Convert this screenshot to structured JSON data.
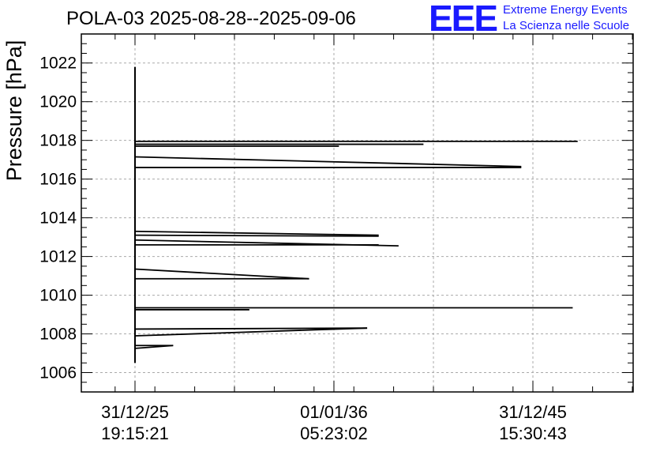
{
  "header": {
    "title": "POLA-03 2025-08-28--2025-09-06",
    "logo_text": "EEE",
    "logo_line1": "Extreme Energy Events",
    "logo_line2": "La Scienza nelle Scuole"
  },
  "colors": {
    "logo": "#1a1aff",
    "data": "#000000",
    "grid": "#aaaaaa"
  },
  "chart_data": {
    "type": "line",
    "title": "POLA-03 2025-08-28--2025-09-06",
    "xlabel": "",
    "ylabel": "Pressure [hPa]",
    "ylim": [
      1005,
      1023.5
    ],
    "y_ticks": [
      1006,
      1008,
      1010,
      1012,
      1014,
      1016,
      1018,
      1020,
      1022
    ],
    "x_ticks": [
      {
        "date": "31/12/25",
        "time": "19:15:21"
      },
      {
        "date": "01/01/36",
        "time": "05:23:02"
      },
      {
        "date": "31/12/45",
        "time": "15:30:43"
      }
    ],
    "grid": true,
    "series": [
      {
        "values_note": "",
        "segments": [
          {
            "from": {
              "x": "2025-12-31",
              "y": 1021.8
            },
            "to": {
              "x": "2025-12-31",
              "y": 1006.5
            }
          },
          {
            "from": {
              "x": "2025-12-31",
              "y": 1017.95
            },
            "to": {
              "x": "2048-04-01",
              "y": 1017.95
            }
          },
          {
            "from": {
              "x": "2025-12-31",
              "y": 1017.8
            },
            "to": {
              "x": "2040-07-01",
              "y": 1017.8
            }
          },
          {
            "from": {
              "x": "2025-12-31",
              "y": 1017.7
            },
            "to": {
              "x": "2036-04-01",
              "y": 1017.7
            }
          },
          {
            "from": {
              "x": "2025-12-31",
              "y": 1017.15
            },
            "to": {
              "x": "2045-06-01",
              "y": 1016.65
            }
          },
          {
            "from": {
              "x": "2025-12-31",
              "y": 1016.6
            },
            "to": {
              "x": "2045-06-01",
              "y": 1016.6
            }
          },
          {
            "from": {
              "x": "2025-12-31",
              "y": 1013.3
            },
            "to": {
              "x": "2038-04-01",
              "y": 1013.1
            }
          },
          {
            "from": {
              "x": "2025-12-31",
              "y": 1013.1
            },
            "to": {
              "x": "2038-04-01",
              "y": 1013.05
            }
          },
          {
            "from": {
              "x": "2025-12-31",
              "y": 1012.85
            },
            "to": {
              "x": "2039-04-01",
              "y": 1012.55
            }
          },
          {
            "from": {
              "x": "2025-12-31",
              "y": 1012.6
            },
            "to": {
              "x": "2038-04-01",
              "y": 1012.6
            }
          },
          {
            "from": {
              "x": "2025-12-31",
              "y": 1011.35
            },
            "to": {
              "x": "2034-10-01",
              "y": 1010.85
            }
          },
          {
            "from": {
              "x": "2025-12-31",
              "y": 1010.85
            },
            "to": {
              "x": "2034-10-01",
              "y": 1010.85
            }
          },
          {
            "from": {
              "x": "2025-12-31",
              "y": 1009.35
            },
            "to": {
              "x": "2048-01-01",
              "y": 1009.35
            }
          },
          {
            "from": {
              "x": "2025-12-31",
              "y": 1009.25
            },
            "to": {
              "x": "2031-10-01",
              "y": 1009.25
            }
          },
          {
            "from": {
              "x": "2025-12-31",
              "y": 1008.25
            },
            "to": {
              "x": "2037-09-01",
              "y": 1008.3
            }
          },
          {
            "from": {
              "x": "2025-12-31",
              "y": 1007.9
            },
            "to": {
              "x": "2037-09-01",
              "y": 1008.3
            }
          },
          {
            "from": {
              "x": "2025-12-31",
              "y": 1007.4
            },
            "to": {
              "x": "2027-12-01",
              "y": 1007.4
            }
          },
          {
            "from": {
              "x": "2025-12-31",
              "y": 1007.25
            },
            "to": {
              "x": "2027-12-01",
              "y": 1007.4
            }
          }
        ]
      }
    ]
  }
}
